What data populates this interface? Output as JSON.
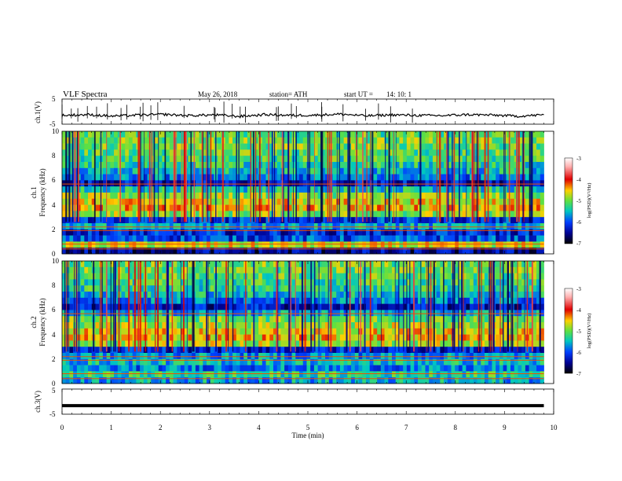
{
  "header": {
    "title": "VLF  Spectra",
    "date": "May 26, 2018",
    "station": "station= ATH",
    "start_label": "start  UT  =",
    "start_time": "14: 10: 1"
  },
  "chart_data": [
    {
      "type": "line",
      "title": "",
      "ylabel": "ch.1(V)",
      "ylim": [
        -5,
        5
      ],
      "yticks": [
        5,
        -5
      ],
      "xlim": [
        0,
        10
      ],
      "series": [
        {
          "values": [
            -1.5,
            -1.2,
            -1.8,
            -1.4,
            -1.1,
            -1.6,
            -1.3,
            -1.9,
            -1.2,
            -1.5,
            -1.4,
            -1.0,
            -1.7,
            -1.3,
            -1.5,
            -1.6,
            -1.2,
            -1.4,
            -1.8,
            -1.3
          ]
        }
      ]
    },
    {
      "type": "heatmap",
      "title": "",
      "ylabel_top": "ch.1",
      "ylabel": "Frequency  (kHz)",
      "ylim": [
        0,
        10
      ],
      "yticks": [
        0,
        2,
        4,
        6,
        8,
        10
      ],
      "xlim": [
        0,
        9.8
      ],
      "colorbar": {
        "label": "log(PSD)(V²/Hz)",
        "min": -7,
        "max": -3,
        "ticks": [
          "-3",
          "-4",
          "-5",
          "-6",
          "-7"
        ]
      },
      "rows": [
        {
          "f": [
            9.5,
            10
          ],
          "level": -5.1
        },
        {
          "f": [
            9,
            9.5
          ],
          "level": -5.0
        },
        {
          "f": [
            8.5,
            9
          ],
          "level": -5.0
        },
        {
          "f": [
            8,
            8.5
          ],
          "level": -5.1
        },
        {
          "f": [
            7.5,
            8
          ],
          "level": -5.2
        },
        {
          "f": [
            7,
            7.5
          ],
          "level": -5.3
        },
        {
          "f": [
            6.5,
            7
          ],
          "level": -5.5
        },
        {
          "f": [
            6,
            6.5
          ],
          "level": -5.8
        },
        {
          "f": [
            5.5,
            6
          ],
          "level": -6.3
        },
        {
          "f": [
            5,
            5.5
          ],
          "level": -5.4
        },
        {
          "f": [
            4.5,
            5
          ],
          "level": -4.9
        },
        {
          "f": [
            4,
            4.5
          ],
          "level": -4.6
        },
        {
          "f": [
            3.5,
            4
          ],
          "level": -4.5
        },
        {
          "f": [
            3,
            3.5
          ],
          "level": -4.9
        },
        {
          "f": [
            2.5,
            3
          ],
          "level": -6.1
        },
        {
          "f": [
            2,
            2.5
          ],
          "level": -5.6
        },
        {
          "f": [
            1.5,
            2
          ],
          "level": -6.2
        },
        {
          "f": [
            1,
            1.5
          ],
          "level": -6.0
        },
        {
          "f": [
            0.5,
            1
          ],
          "level": -4.7
        },
        {
          "f": [
            0,
            0.5
          ],
          "level": -6.5
        }
      ]
    },
    {
      "type": "heatmap",
      "title": "",
      "ylabel_top": "ch.2",
      "ylabel": "Frequency  (kHz)",
      "ylim": [
        0,
        10
      ],
      "yticks": [
        0,
        2,
        4,
        6,
        8,
        10
      ],
      "xlim": [
        0,
        9.8
      ],
      "colorbar": {
        "label": "log(PSD)(V²/Hz)",
        "min": -7,
        "max": -3,
        "ticks": [
          "-3",
          "-4",
          "-5",
          "-6",
          "-7"
        ]
      },
      "rows": [
        {
          "f": [
            9.5,
            10
          ],
          "level": -5.0
        },
        {
          "f": [
            9,
            9.5
          ],
          "level": -5.0
        },
        {
          "f": [
            8.5,
            9
          ],
          "level": -5.1
        },
        {
          "f": [
            8,
            8.5
          ],
          "level": -5.2
        },
        {
          "f": [
            7.5,
            8
          ],
          "level": -5.3
        },
        {
          "f": [
            7,
            7.5
          ],
          "level": -5.5
        },
        {
          "f": [
            6.5,
            7
          ],
          "level": -5.8
        },
        {
          "f": [
            6,
            6.5
          ],
          "level": -6.3
        },
        {
          "f": [
            5.5,
            6
          ],
          "level": -5.6
        },
        {
          "f": [
            5,
            5.5
          ],
          "level": -5.0
        },
        {
          "f": [
            4.5,
            5
          ],
          "level": -4.8
        },
        {
          "f": [
            4,
            4.5
          ],
          "level": -4.6
        },
        {
          "f": [
            3.5,
            4
          ],
          "level": -4.5
        },
        {
          "f": [
            3,
            3.5
          ],
          "level": -4.8
        },
        {
          "f": [
            2.5,
            3
          ],
          "level": -6.2
        },
        {
          "f": [
            2,
            2.5
          ],
          "level": -5.7
        },
        {
          "f": [
            1.5,
            2
          ],
          "level": -5.5
        },
        {
          "f": [
            1,
            1.5
          ],
          "level": -5.8
        },
        {
          "f": [
            0.5,
            1
          ],
          "level": -5.3
        },
        {
          "f": [
            0,
            0.5
          ],
          "level": -5.6
        }
      ]
    },
    {
      "type": "line",
      "title": "",
      "ylabel": "ch.3(V)",
      "ylim": [
        -5,
        5
      ],
      "yticks": [
        5,
        -5
      ],
      "xlim": [
        0,
        10
      ],
      "xticks": [
        "0",
        "1",
        "2",
        "3",
        "4",
        "5",
        "6",
        "7",
        "8",
        "9",
        "10"
      ],
      "xlabel": "Time  (min)",
      "series": [
        {
          "values": [
            -1.6,
            -1.6,
            -1.6,
            -1.6,
            -1.6,
            -1.6,
            -1.6,
            -1.6,
            -1.6,
            -1.6,
            -1.6,
            -1.6,
            -1.6,
            -1.6,
            -1.6,
            -1.6,
            -1.6,
            -1.6,
            -1.6,
            -1.6
          ]
        }
      ]
    }
  ]
}
